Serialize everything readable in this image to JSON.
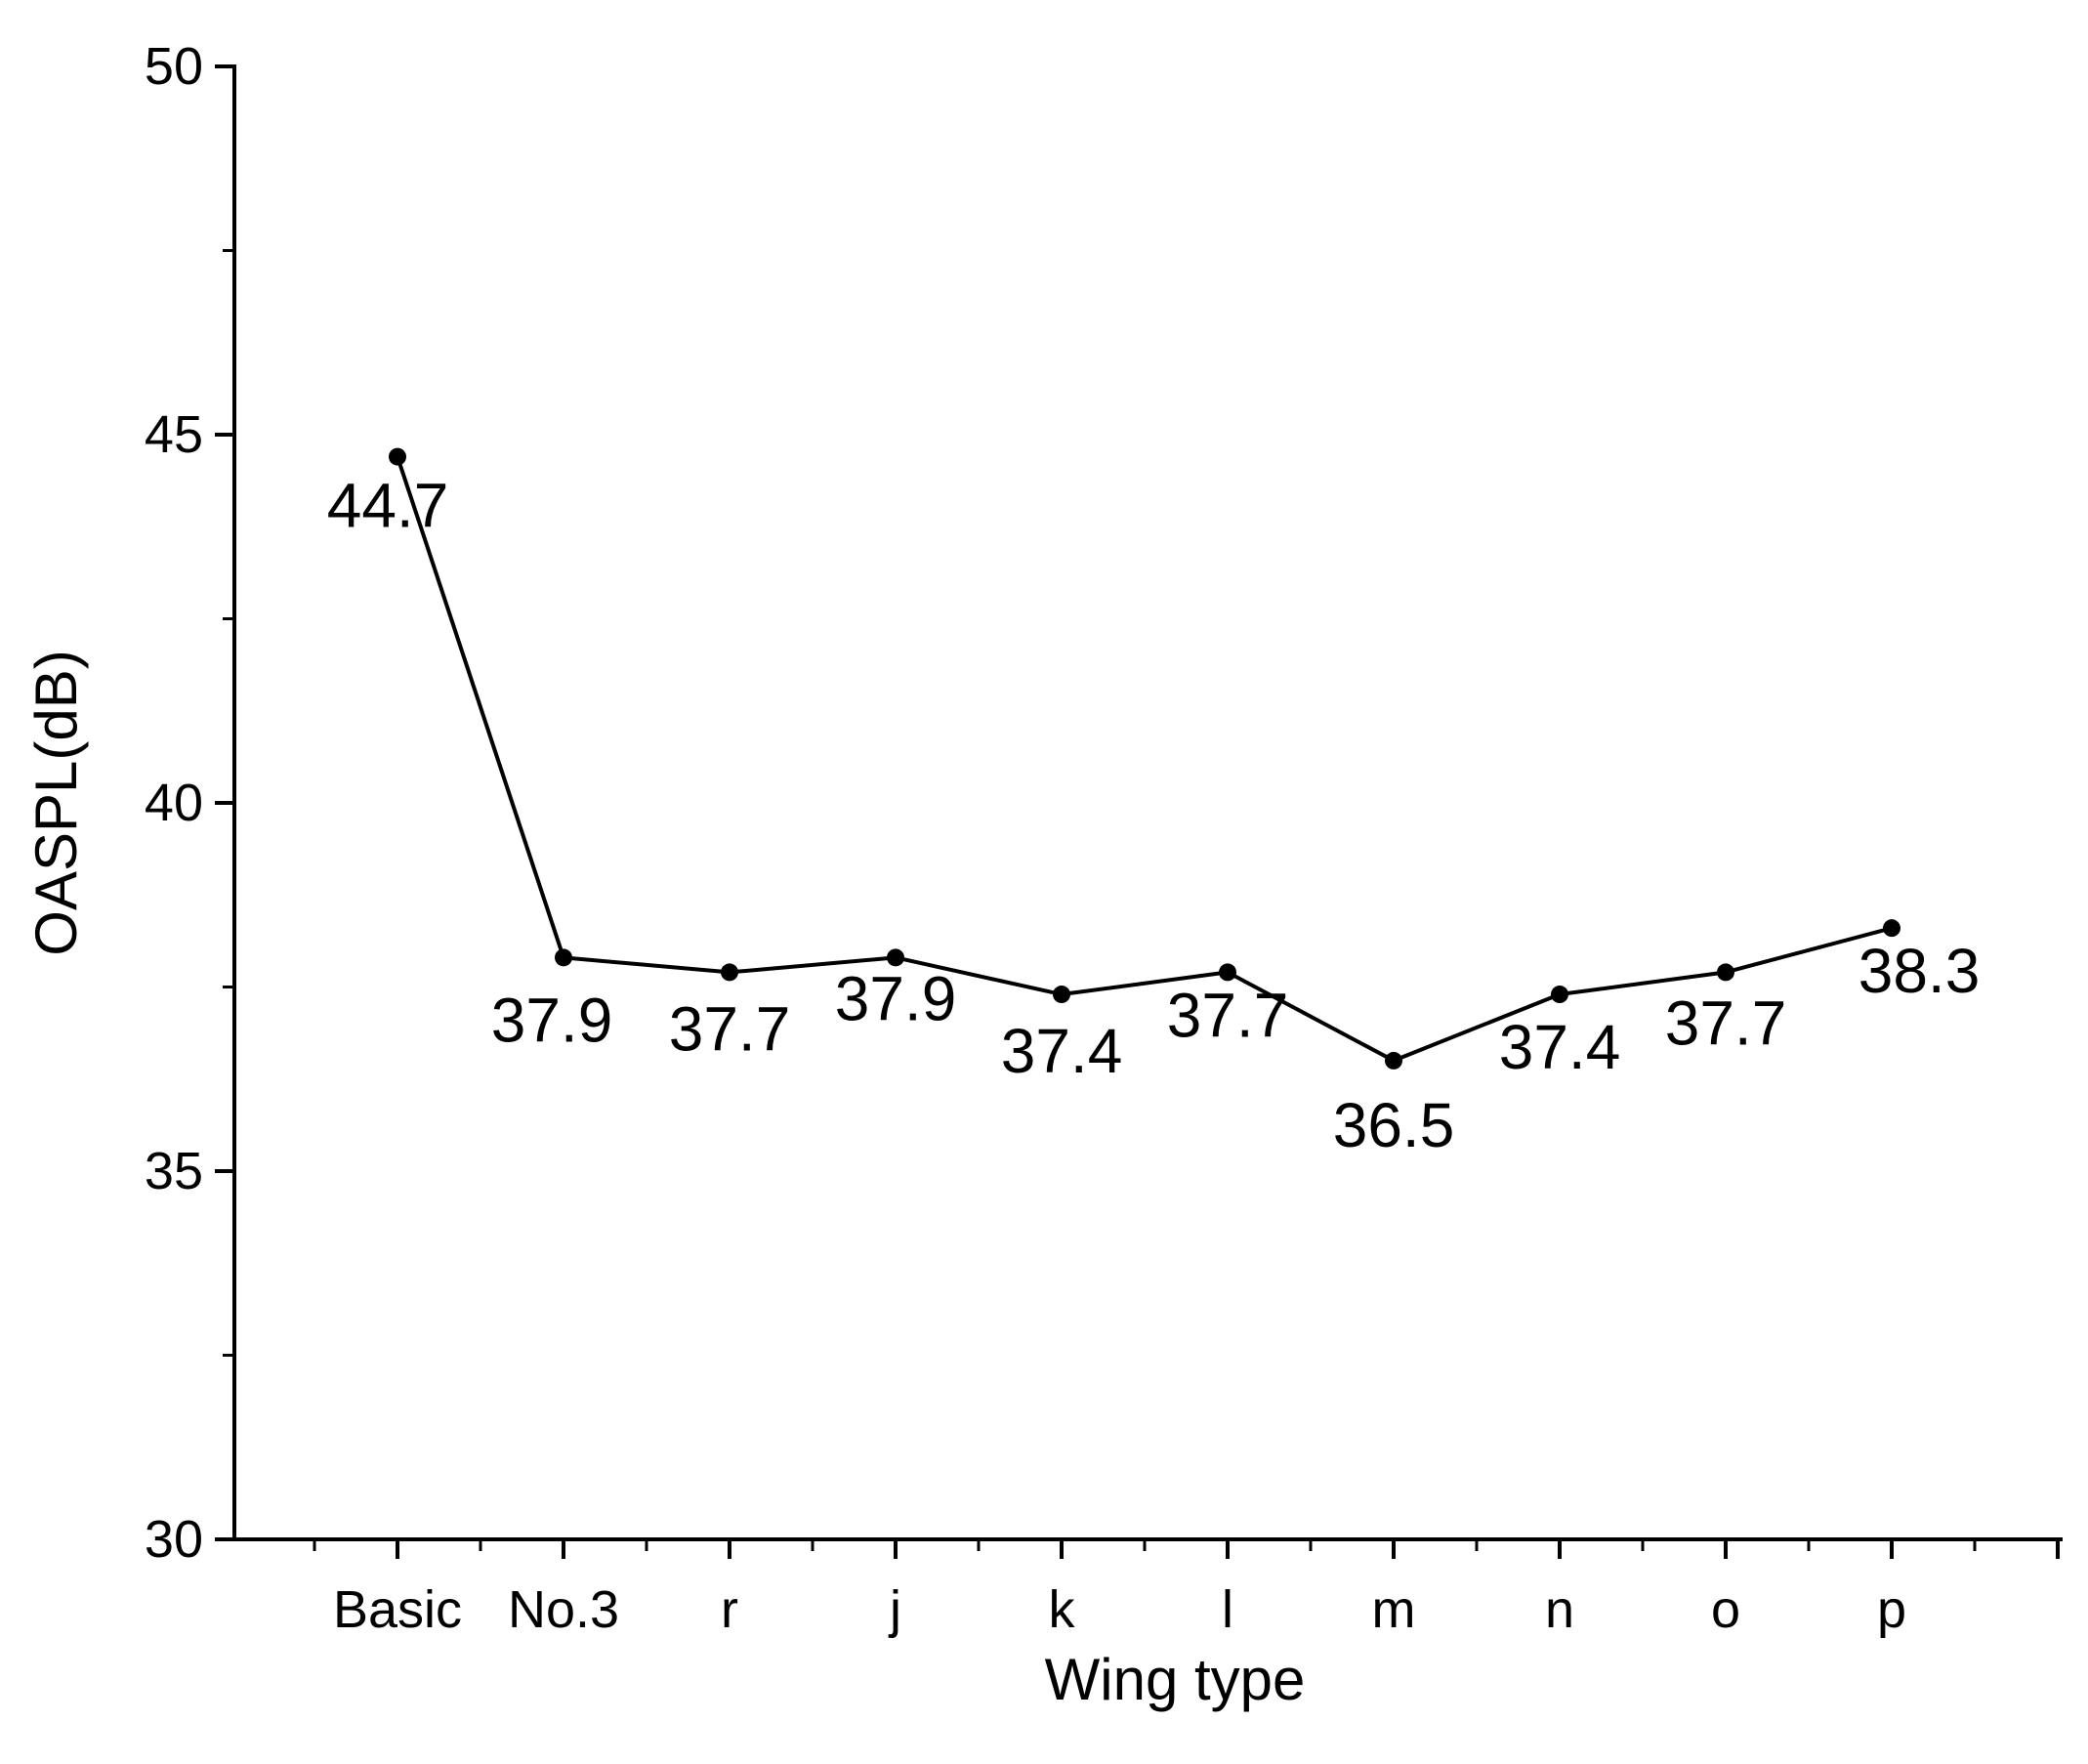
{
  "chart_data": {
    "type": "line",
    "title": "",
    "xlabel": "Wing type",
    "ylabel": "OASPL(dB)",
    "categories": [
      "Basic",
      "No.3",
      "r",
      "j",
      "k",
      "l",
      "m",
      "n",
      "o",
      "p"
    ],
    "series": [
      {
        "values": [
          44.7,
          37.9,
          37.7,
          37.9,
          37.4,
          37.7,
          36.5,
          37.4,
          37.7,
          38.3
        ]
      }
    ],
    "data_labels": [
      "44.7",
      "37.9",
      "37.7",
      "37.9",
      "37.4",
      "37.7",
      "36.5",
      "37.4",
      "37.7",
      "38.3"
    ],
    "ylim": [
      30,
      50
    ],
    "yticks": [
      30,
      35,
      40,
      45,
      50
    ],
    "ytick_labels": [
      "30",
      "35",
      "40",
      "45",
      "50"
    ],
    "grid": false,
    "legend": "none",
    "colors": {
      "line": "#000000",
      "marker": "#000000",
      "axis": "#000000",
      "background": "#ffffff"
    }
  }
}
